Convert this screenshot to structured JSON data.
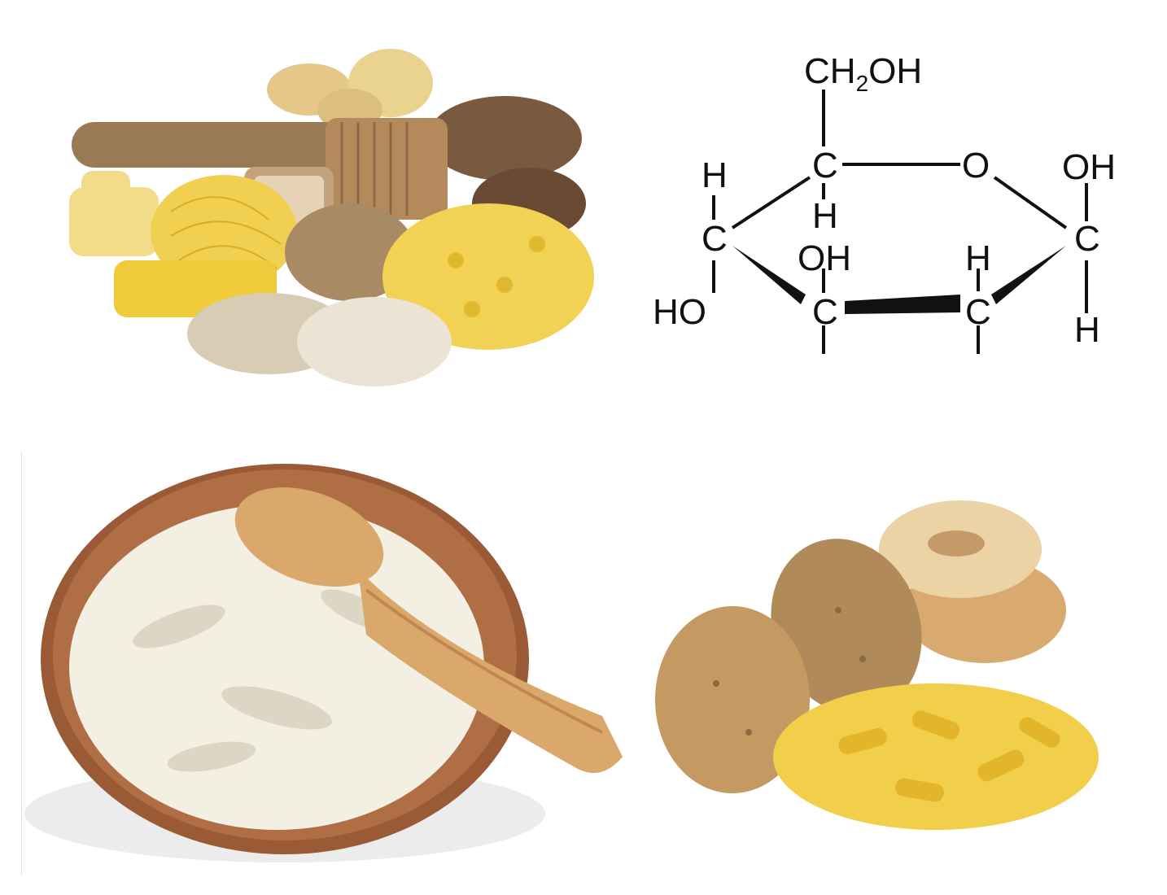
{
  "glucose": {
    "top_group_ch2": "CH",
    "top_group_sub": "2",
    "top_group_oh": "OH",
    "ring_oxygen": "O",
    "carbon": "C",
    "hydrogen": "H",
    "hydroxyl": "OH",
    "hydroxyl_left": "HO"
  },
  "colors": {
    "bread": "#8a6a48",
    "pasta": "#f2cf4a",
    "potato": "#d9b978",
    "rice": "#f3efe3",
    "bowl": "#9a5a36",
    "spoon": "#d9a86a"
  }
}
